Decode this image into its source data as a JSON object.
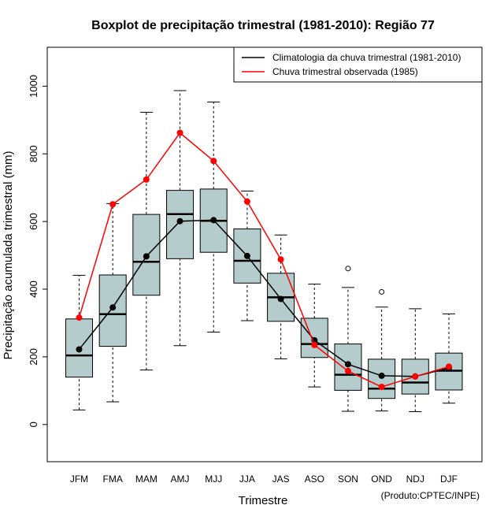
{
  "chart_data": {
    "type": "boxplot",
    "title": "Boxplot de precipitação trimestral (1981-2010): Região 77",
    "xlabel": "Trimestre",
    "ylabel": "Precipitação acumulada trimestral (mm)",
    "ylim": [
      -110,
      1115
    ],
    "yticks": [
      0,
      200,
      400,
      600,
      800,
      1000
    ],
    "categories": [
      "JFM",
      "FMA",
      "MAM",
      "AMJ",
      "MJJ",
      "JJA",
      "JAS",
      "ASO",
      "SON",
      "OND",
      "NDJ",
      "DJF"
    ],
    "boxes": [
      {
        "min": 43,
        "q1": 140,
        "median": 204,
        "q3": 312,
        "max": 441,
        "outliers": []
      },
      {
        "min": 67,
        "q1": 231,
        "median": 326,
        "q3": 442,
        "max": 653,
        "outliers": []
      },
      {
        "min": 161,
        "q1": 382,
        "median": 481,
        "q3": 621,
        "max": 923,
        "outliers": []
      },
      {
        "min": 233,
        "q1": 490,
        "median": 622,
        "q3": 692,
        "max": 987,
        "outliers": []
      },
      {
        "min": 273,
        "q1": 509,
        "median": 602,
        "q3": 696,
        "max": 953,
        "outliers": []
      },
      {
        "min": 307,
        "q1": 418,
        "median": 484,
        "q3": 578,
        "max": 690,
        "outliers": []
      },
      {
        "min": 194,
        "q1": 305,
        "median": 376,
        "q3": 447,
        "max": 560,
        "outliers": []
      },
      {
        "min": 111,
        "q1": 198,
        "median": 238,
        "q3": 314,
        "max": 415,
        "outliers": []
      },
      {
        "min": 39,
        "q1": 101,
        "median": 147,
        "q3": 238,
        "max": 405,
        "outliers": [
          461
        ]
      },
      {
        "min": 40,
        "q1": 77,
        "median": 106,
        "q3": 193,
        "max": 347,
        "outliers": [
          392
        ]
      },
      {
        "min": 38,
        "q1": 90,
        "median": 124,
        "q3": 193,
        "max": 342,
        "outliers": []
      },
      {
        "min": 63,
        "q1": 102,
        "median": 159,
        "q3": 211,
        "max": 327,
        "outliers": []
      }
    ],
    "series": [
      {
        "name": "Climatologia da chuva trimestral (1981-2010)",
        "color": "#000000",
        "values": [
          222,
          346,
          497,
          601,
          604,
          498,
          371,
          249,
          178,
          144,
          142,
          167
        ]
      },
      {
        "name": "Chuva trimestral observada (1985)",
        "color": "#ff0000",
        "values": [
          316,
          651,
          724,
          862,
          779,
          659,
          488,
          235,
          158,
          111,
          142,
          171
        ]
      }
    ],
    "legend_position": "top-right",
    "box_fill": "#b5cccc",
    "grid": false,
    "credit": "(Produto:CPTEC/INPE)"
  }
}
